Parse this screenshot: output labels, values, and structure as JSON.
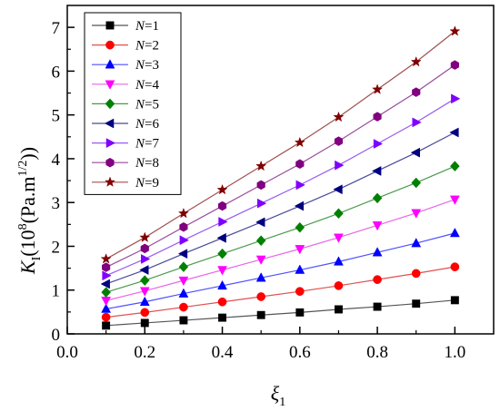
{
  "chart_data": {
    "type": "line",
    "title": "",
    "xlabel": {
      "base": "ξ",
      "sub": "1"
    },
    "ylabel": {
      "base": "K",
      "sub": "I",
      "pre": "(10",
      "sup1": "8",
      "mid": "(Pa.m",
      "sup2": "1/2",
      "post": "))"
    },
    "xlim": [
      0.0,
      1.1
    ],
    "ylim": [
      0,
      7.5
    ],
    "xticks": [
      0.0,
      0.2,
      0.4,
      0.6,
      0.8,
      1.0
    ],
    "xtick_labels": [
      "0.0",
      "0.2",
      "0.4",
      "0.6",
      "0.8",
      "1.0"
    ],
    "yticks": [
      0,
      1,
      2,
      3,
      4,
      5,
      6,
      7
    ],
    "ytick_labels": [
      "0",
      "1",
      "2",
      "3",
      "4",
      "5",
      "6",
      "7"
    ],
    "grid": false,
    "legend_position": "top-left",
    "x": [
      0.1,
      0.2,
      0.3,
      0.4,
      0.5,
      0.6,
      0.7,
      0.8,
      0.9,
      1.0
    ],
    "series": [
      {
        "name": "N=1",
        "marker": "square",
        "color": "#000000",
        "line_color": "#555555",
        "values": [
          0.19,
          0.25,
          0.31,
          0.37,
          0.43,
          0.49,
          0.56,
          0.62,
          0.69,
          0.77
        ]
      },
      {
        "name": "N=2",
        "marker": "circle",
        "color": "#ff0000",
        "line_color": "#e05050",
        "values": [
          0.38,
          0.49,
          0.61,
          0.73,
          0.85,
          0.97,
          1.1,
          1.24,
          1.38,
          1.53
        ]
      },
      {
        "name": "N=3",
        "marker": "triangle-up",
        "color": "#0000ff",
        "line_color": "#4f4fff",
        "values": [
          0.57,
          0.73,
          0.92,
          1.1,
          1.28,
          1.46,
          1.65,
          1.86,
          2.07,
          2.3
        ]
      },
      {
        "name": "N=4",
        "marker": "triangle-down",
        "color": "#ff00ff",
        "line_color": "#e866e8",
        "values": [
          0.76,
          0.98,
          1.22,
          1.46,
          1.7,
          1.94,
          2.2,
          2.48,
          2.76,
          3.07
        ]
      },
      {
        "name": "N=5",
        "marker": "diamond",
        "color": "#008000",
        "line_color": "#4a9a4a",
        "values": [
          0.95,
          1.22,
          1.53,
          1.83,
          2.13,
          2.43,
          2.75,
          3.1,
          3.45,
          3.83
        ]
      },
      {
        "name": "N=6",
        "marker": "triangle-left",
        "color": "#000080",
        "line_color": "#4a4a9a",
        "values": [
          1.14,
          1.46,
          1.83,
          2.19,
          2.55,
          2.92,
          3.3,
          3.72,
          4.14,
          4.6
        ]
      },
      {
        "name": "N=7",
        "marker": "triangle-right",
        "color": "#8000ff",
        "line_color": "#9a5af0",
        "values": [
          1.33,
          1.71,
          2.14,
          2.56,
          2.98,
          3.4,
          3.85,
          4.34,
          4.83,
          5.37
        ]
      },
      {
        "name": "N=8",
        "marker": "hexagon",
        "color": "#800080",
        "line_color": "#9a4a9a",
        "values": [
          1.52,
          1.95,
          2.44,
          2.92,
          3.4,
          3.88,
          4.4,
          4.96,
          5.52,
          6.14
        ]
      },
      {
        "name": "N=9",
        "marker": "star",
        "color": "#800000",
        "line_color": "#a05050",
        "values": [
          1.71,
          2.2,
          2.75,
          3.29,
          3.83,
          4.37,
          4.95,
          5.58,
          6.21,
          6.91
        ]
      }
    ]
  }
}
